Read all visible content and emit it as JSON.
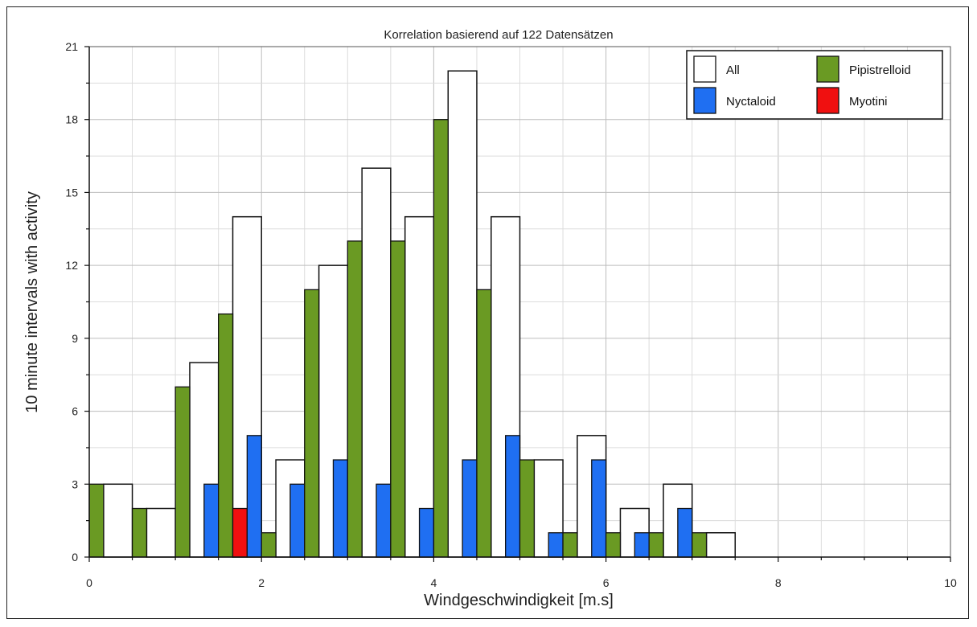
{
  "chart_data": {
    "type": "bar",
    "title": "Korrelation basierend auf 122 Datensätzen",
    "xlabel": "Windgeschwindigkeit [m.s]",
    "ylabel": "10 minute intervals with activity",
    "xlim": [
      0,
      10
    ],
    "ylim": [
      0,
      21
    ],
    "xticks": [
      0,
      2,
      4,
      6,
      8,
      10
    ],
    "yticks": [
      0,
      3,
      6,
      9,
      12,
      15,
      18,
      21
    ],
    "grid": true,
    "legend_position": "top-right",
    "bin_width": 0.5,
    "bins": [
      [
        0,
        0.5
      ],
      [
        0.5,
        1
      ],
      [
        1,
        1.5
      ],
      [
        1.5,
        2
      ],
      [
        2,
        2.5
      ],
      [
        2.5,
        3
      ],
      [
        3,
        3.5
      ],
      [
        3.5,
        4
      ],
      [
        4,
        4.5
      ],
      [
        4.5,
        5
      ],
      [
        5,
        5.5
      ],
      [
        5.5,
        6
      ],
      [
        6,
        6.5
      ],
      [
        6.5,
        7
      ],
      [
        7,
        7.5
      ]
    ],
    "series": [
      {
        "name": "All",
        "color": "#ffffff",
        "values": [
          3,
          2,
          8,
          14,
          4,
          12,
          16,
          14,
          20,
          14,
          4,
          5,
          2,
          3,
          1
        ]
      },
      {
        "name": "Pipistrelloid",
        "color": "#6a9a23",
        "values": [
          3,
          2,
          7,
          10,
          1,
          11,
          13,
          13,
          18,
          11,
          4,
          1,
          1,
          1,
          1
        ]
      },
      {
        "name": "Nyctaloid",
        "color": "#1f6ff2",
        "values": [
          0,
          0,
          3,
          5,
          3,
          4,
          3,
          2,
          4,
          5,
          1,
          4,
          1,
          2,
          0
        ]
      },
      {
        "name": "Myotini",
        "color": "#f01010",
        "values": [
          0,
          0,
          0,
          2,
          0,
          0,
          0,
          0,
          0,
          0,
          0,
          0,
          0,
          0,
          0
        ]
      }
    ]
  }
}
